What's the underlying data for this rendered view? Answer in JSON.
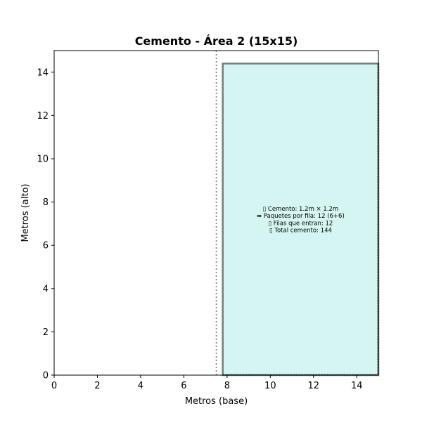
{
  "chart_data": {
    "type": "area",
    "title": "Cemento - Área 2 (15x15)",
    "xlabel": "Metros (base)",
    "ylabel": "Metros (alto)",
    "xlim": [
      0,
      15
    ],
    "ylim": [
      0,
      15
    ],
    "xticks": [
      0,
      2,
      4,
      6,
      8,
      10,
      12,
      14
    ],
    "yticks": [
      0,
      2,
      4,
      6,
      8,
      10,
      12,
      14
    ],
    "grid": false,
    "divider_x": 7.5,
    "region": {
      "x0": 7.8,
      "x1": 15,
      "y0": 0,
      "y1": 14.4,
      "fill": "#d5f5f3",
      "edge": "#6f7f7f"
    },
    "annotation": {
      "x": 11.4,
      "y": 7.2,
      "lines": [
        "▯ Cemento: 1.2m × 1.2m",
        "➡ Paquetes por fila: 12 (6+6)",
        "▯ Filas que entran: 12",
        "▯ Total cemento: 144"
      ]
    }
  }
}
